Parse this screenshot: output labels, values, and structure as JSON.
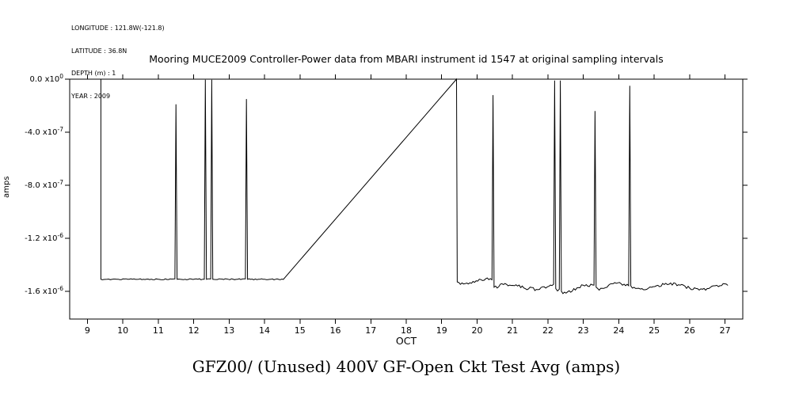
{
  "metadata_block": {
    "longitude": "LONGITUDE : 121.8W(-121.8)",
    "latitude": "LATITUDE : 36.8N",
    "depth": "DEPTH (m) : 1",
    "year": "YEAR : 2009"
  },
  "chart_data": {
    "type": "line",
    "title": "Mooring MUCE2009 Controller-Power data from MBARI instrument id 1547 at original sampling intervals",
    "caption": "GFZ00/ (Unused) 400V GF-Open Ckt Test Avg (amps)",
    "xlabel": "OCT",
    "ylabel": "amps",
    "xlim": [
      8.5,
      27.5
    ],
    "ylim": [
      -1.81e-06,
      0
    ],
    "grid": false,
    "legend": "none",
    "line_color": "#000000",
    "background_color": "#ffffff",
    "x_ticks": [
      9,
      10,
      11,
      12,
      13,
      14,
      15,
      16,
      17,
      18,
      19,
      20,
      21,
      22,
      23,
      24,
      25,
      26,
      27
    ],
    "y_ticks": [
      {
        "value": 0,
        "mantissa": "0.0",
        "exponent": "0"
      },
      {
        "value": -4e-07,
        "mantissa": "-4.0",
        "exponent": "-7"
      },
      {
        "value": -8e-07,
        "mantissa": "-8.0",
        "exponent": "-7"
      },
      {
        "value": -1.2e-06,
        "mantissa": "-1.2",
        "exponent": "-6"
      },
      {
        "value": -1.6e-06,
        "mantissa": "-1.6",
        "exponent": "-6"
      }
    ],
    "series": [
      {
        "name": "GFZ00/ (Unused) 400V GF-Open Ckt Test Avg (amps)",
        "segments": [
          {
            "k": "M",
            "x": 9.38,
            "y": 0
          },
          {
            "k": "L",
            "x": 9.38,
            "y": -1.51e-06
          },
          {
            "k": "N",
            "x": 11.47,
            "y": -1.51e-06,
            "a": 4e-09
          },
          {
            "k": "L",
            "x": 11.5,
            "y": -1.9e-07
          },
          {
            "k": "L",
            "x": 11.53,
            "y": -1.51e-06
          },
          {
            "k": "N",
            "x": 12.3,
            "y": -1.51e-06,
            "a": 4e-09
          },
          {
            "k": "L",
            "x": 12.33,
            "y": -5e-09
          },
          {
            "k": "L",
            "x": 12.36,
            "y": -1.51e-06
          },
          {
            "k": "N",
            "x": 12.48,
            "y": -1.51e-06,
            "a": 4e-09
          },
          {
            "k": "L",
            "x": 12.51,
            "y": -5e-09
          },
          {
            "k": "L",
            "x": 12.54,
            "y": -1.51e-06
          },
          {
            "k": "N",
            "x": 13.46,
            "y": -1.51e-06,
            "a": 4e-09
          },
          {
            "k": "L",
            "x": 13.49,
            "y": -1.5e-07
          },
          {
            "k": "L",
            "x": 13.52,
            "y": -1.51e-06
          },
          {
            "k": "N",
            "x": 14.53,
            "y": -1.51e-06,
            "a": 4e-09
          },
          {
            "k": "L",
            "x": 19.42,
            "y": 0
          },
          {
            "k": "L",
            "x": 19.44,
            "y": -1.53e-06
          },
          {
            "k": "N",
            "x": 20.42,
            "y": -1.52e-06,
            "a": 1e-08,
            "w": 1.5e-08,
            "p": 1.2
          },
          {
            "k": "L",
            "x": 20.45,
            "y": -1.2e-07
          },
          {
            "k": "L",
            "x": 20.48,
            "y": -1.57e-06
          },
          {
            "k": "N",
            "x": 22.16,
            "y": -1.56e-06,
            "a": 1.2e-08,
            "w": 2e-08,
            "p": 1.5
          },
          {
            "k": "L",
            "x": 22.19,
            "y": -1e-08
          },
          {
            "k": "L",
            "x": 22.22,
            "y": -1.58e-06
          },
          {
            "k": "N",
            "x": 22.32,
            "y": -1.6e-06,
            "a": 2.2e-08
          },
          {
            "k": "L",
            "x": 22.35,
            "y": -1e-08
          },
          {
            "k": "L",
            "x": 22.38,
            "y": -1.6e-06
          },
          {
            "k": "N",
            "x": 23.3,
            "y": -1.56e-06,
            "a": 1.2e-08,
            "w": 1.5e-08,
            "p": 1.1
          },
          {
            "k": "L",
            "x": 23.33,
            "y": -2.4e-07
          },
          {
            "k": "L",
            "x": 23.36,
            "y": -1.57e-06
          },
          {
            "k": "N",
            "x": 24.28,
            "y": -1.55e-06,
            "a": 1e-08,
            "w": 1.5e-08,
            "p": 1.0
          },
          {
            "k": "L",
            "x": 24.31,
            "y": -5e-08
          },
          {
            "k": "L",
            "x": 24.34,
            "y": -1.56e-06
          },
          {
            "k": "N",
            "x": 27.08,
            "y": -1.57e-06,
            "a": 1e-08,
            "w": 2e-08,
            "p": 1.6
          }
        ]
      }
    ]
  }
}
